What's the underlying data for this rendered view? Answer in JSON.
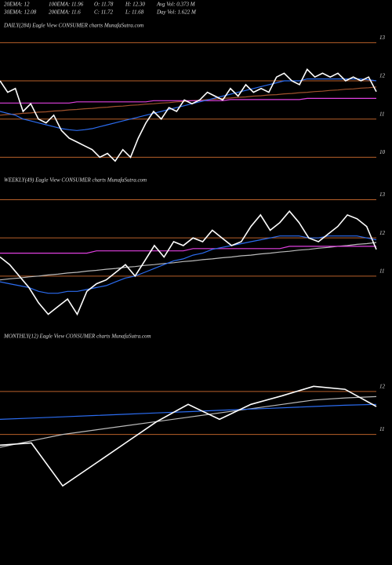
{
  "header": {
    "stats": [
      [
        "20EMA: 12",
        "100EMA: 11.96",
        "O: 11.78",
        "H: 12.30",
        "Avg Vol: 0.373 M"
      ],
      [
        "30EMA: 12.08",
        "200EMA: 11.6",
        "C: 11.72",
        "L: 11.68",
        "Day Vol: 1.622 M"
      ]
    ]
  },
  "chart_data": [
    {
      "type": "line",
      "title": "DAILY(284) Eagle  View  CONSUMER charts MunafaSutra.com",
      "categories": [
        null,
        null,
        null,
        null,
        null,
        null,
        null,
        null,
        null,
        null,
        null,
        null,
        null,
        null,
        null,
        null,
        null,
        null,
        null,
        null,
        null,
        null,
        null,
        null,
        null,
        null,
        null,
        null,
        null,
        null,
        null,
        null,
        null,
        null,
        null,
        null,
        null,
        null,
        null,
        null,
        null,
        null,
        null,
        null,
        null,
        null,
        null,
        null,
        null,
        null
      ],
      "series": [
        {
          "color": "#a0522d",
          "values": [
            11.1,
            11.12,
            11.13,
            11.15,
            11.16,
            11.18,
            11.19,
            11.21,
            11.22,
            11.24,
            11.25,
            11.27,
            11.28,
            11.3,
            11.31,
            11.33,
            11.34,
            11.36,
            11.37,
            11.39,
            11.4,
            11.42,
            11.43,
            11.45,
            11.46,
            11.48,
            11.49,
            11.51,
            11.52,
            11.54,
            11.55,
            11.57,
            11.58,
            11.6,
            11.61,
            11.63,
            11.64,
            11.66,
            11.67,
            11.69,
            11.7,
            11.72,
            11.73,
            11.75,
            11.76,
            11.78,
            11.79,
            11.81,
            11.82,
            11.84
          ]
        },
        {
          "color": "#e040e0",
          "values": [
            11.42,
            11.42,
            11.42,
            11.42,
            11.42,
            11.42,
            11.42,
            11.42,
            11.42,
            11.42,
            11.45,
            11.45,
            11.45,
            11.45,
            11.45,
            11.45,
            11.45,
            11.45,
            11.45,
            11.45,
            11.48,
            11.48,
            11.48,
            11.48,
            11.48,
            11.48,
            11.48,
            11.48,
            11.48,
            11.48,
            11.51,
            11.51,
            11.51,
            11.51,
            11.51,
            11.51,
            11.51,
            11.51,
            11.51,
            11.51,
            11.54,
            11.54,
            11.54,
            11.54,
            11.54,
            11.54,
            11.54,
            11.54,
            11.54,
            11.54
          ]
        },
        {
          "color": "#2b6cf0",
          "values": [
            11.2,
            11.15,
            11.1,
            11.0,
            10.95,
            10.9,
            10.85,
            10.8,
            10.75,
            10.72,
            10.7,
            10.72,
            10.75,
            10.8,
            10.85,
            10.9,
            10.95,
            11.0,
            11.05,
            11.1,
            11.15,
            11.2,
            11.25,
            11.3,
            11.35,
            11.4,
            11.45,
            11.5,
            11.55,
            11.6,
            11.65,
            11.7,
            11.75,
            11.8,
            11.85,
            11.9,
            11.95,
            12.0,
            12.0,
            12.0,
            12.05,
            12.05,
            12.05,
            12.05,
            12.05,
            12.05,
            12.05,
            12.05,
            12.03,
            12.0
          ]
        },
        {
          "color": "#ffffff",
          "values": [
            12.0,
            11.7,
            11.8,
            11.2,
            11.4,
            11.0,
            10.9,
            11.1,
            10.7,
            10.5,
            10.4,
            10.3,
            10.2,
            10.0,
            10.1,
            9.9,
            10.2,
            10.0,
            10.5,
            10.9,
            11.2,
            11.0,
            11.3,
            11.2,
            11.5,
            11.4,
            11.5,
            11.7,
            11.6,
            11.5,
            11.8,
            11.6,
            11.9,
            11.7,
            11.8,
            11.7,
            12.1,
            12.2,
            12.0,
            11.9,
            12.3,
            12.1,
            12.2,
            12.1,
            12.2,
            12.0,
            12.1,
            12.0,
            12.1,
            11.72
          ]
        }
      ],
      "ylim": [
        9.7,
        13.5
      ],
      "yticks": [
        13,
        12,
        11,
        10
      ],
      "grid": true,
      "grid_color": "#b8602a"
    },
    {
      "type": "line",
      "title": "WEEKLY(49) Eagle  View  CONSUMER charts MunafaSutra.com",
      "categories": [
        null,
        null,
        null,
        null,
        null,
        null,
        null,
        null,
        null,
        null,
        null,
        null,
        null,
        null,
        null,
        null,
        null,
        null,
        null,
        null,
        null,
        null,
        null,
        null,
        null,
        null,
        null,
        null,
        null,
        null,
        null,
        null,
        null,
        null,
        null,
        null,
        null,
        null,
        null,
        null
      ],
      "series": [
        {
          "color": "#bbbbbb",
          "values": [
            10.9,
            10.93,
            10.95,
            10.98,
            11.0,
            11.03,
            11.05,
            11.08,
            11.1,
            11.13,
            11.15,
            11.18,
            11.2,
            11.23,
            11.25,
            11.28,
            11.3,
            11.33,
            11.35,
            11.38,
            11.4,
            11.43,
            11.45,
            11.48,
            11.5,
            11.53,
            11.55,
            11.58,
            11.6,
            11.63,
            11.65,
            11.68,
            11.7,
            11.73,
            11.75,
            11.78,
            11.8,
            11.83,
            11.85,
            11.88
          ]
        },
        {
          "color": "#e040e0",
          "values": [
            11.6,
            11.6,
            11.6,
            11.6,
            11.6,
            11.6,
            11.6,
            11.6,
            11.6,
            11.6,
            11.66,
            11.66,
            11.66,
            11.66,
            11.66,
            11.66,
            11.66,
            11.66,
            11.66,
            11.66,
            11.72,
            11.72,
            11.72,
            11.72,
            11.72,
            11.72,
            11.72,
            11.72,
            11.72,
            11.72,
            11.78,
            11.78,
            11.78,
            11.78,
            11.78,
            11.78,
            11.78,
            11.78,
            11.78,
            11.78
          ]
        },
        {
          "color": "#2b6cf0",
          "values": [
            10.85,
            10.8,
            10.75,
            10.7,
            10.6,
            10.55,
            10.55,
            10.6,
            10.6,
            10.65,
            10.7,
            10.75,
            10.85,
            10.95,
            11.0,
            11.1,
            11.2,
            11.3,
            11.4,
            11.45,
            11.55,
            11.6,
            11.7,
            11.75,
            11.8,
            11.85,
            11.9,
            11.95,
            12.0,
            12.05,
            12.05,
            12.05,
            12.0,
            12.0,
            12.05,
            12.05,
            12.05,
            12.05,
            12.0,
            11.95
          ]
        },
        {
          "color": "#ffffff",
          "values": [
            11.5,
            11.3,
            11.0,
            10.7,
            10.3,
            10.0,
            10.2,
            10.4,
            10.0,
            10.6,
            10.8,
            10.9,
            11.1,
            11.3,
            11.0,
            11.4,
            11.8,
            11.5,
            11.9,
            11.8,
            12.0,
            11.9,
            12.2,
            12.0,
            11.8,
            11.9,
            12.3,
            12.6,
            12.2,
            12.4,
            12.7,
            12.4,
            12.0,
            11.9,
            12.1,
            12.3,
            12.6,
            12.5,
            12.3,
            11.7
          ]
        }
      ],
      "ylim": [
        9.6,
        13.4
      ],
      "yticks": [
        13,
        12,
        11
      ],
      "grid": true,
      "grid_color": "#b8602a"
    },
    {
      "type": "line",
      "title": "MONTHLY(12) Eagle  View  CONSUMER charts MunafaSutra.com",
      "categories": [
        null,
        null,
        null,
        null,
        null,
        null,
        null,
        null,
        null,
        null,
        null,
        null,
        null
      ],
      "series": [
        {
          "color": "#bbbbbb",
          "values": [
            10.7,
            10.85,
            11.0,
            11.1,
            11.2,
            11.3,
            11.4,
            11.5,
            11.6,
            11.7,
            11.8,
            11.85,
            11.88
          ]
        },
        {
          "color": "#2b6cf0",
          "values": [
            11.35,
            11.38,
            11.41,
            11.44,
            11.47,
            11.5,
            11.53,
            11.56,
            11.59,
            11.62,
            11.65,
            11.68,
            11.7
          ]
        },
        {
          "color": "#ffffff",
          "values": [
            10.75,
            10.8,
            9.8,
            10.3,
            10.8,
            11.3,
            11.7,
            11.35,
            11.7,
            11.9,
            12.12,
            12.05,
            11.65
          ]
        }
      ],
      "ylim": [
        8.05,
        13.35
      ],
      "yticks": [
        12,
        11
      ],
      "grid": true,
      "grid_color": "#b8602a"
    }
  ]
}
